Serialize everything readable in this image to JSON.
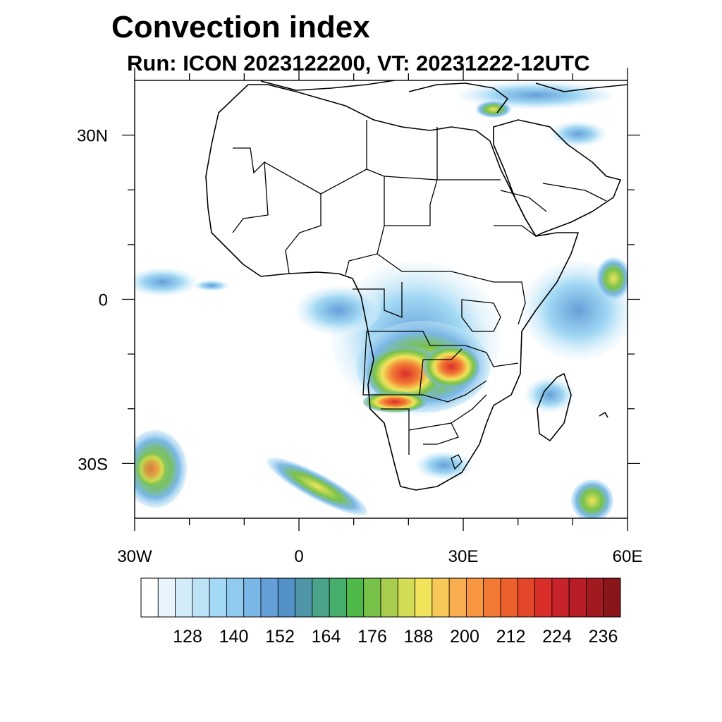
{
  "title": "Convection index",
  "subtitle": "Run: ICON 2023122200,  VT: 20231222-12UTC",
  "axes": {
    "lon_ticks": [
      {
        "value": -30,
        "label": "30W"
      },
      {
        "value": 0,
        "label": "0"
      },
      {
        "value": 30,
        "label": "30E"
      },
      {
        "value": 60,
        "label": "60E"
      }
    ],
    "lat_ticks": [
      {
        "value": 30,
        "label": "30N"
      },
      {
        "value": 0,
        "label": "0"
      },
      {
        "value": -30,
        "label": "30S"
      }
    ],
    "lon_range": [
      -30,
      60
    ],
    "lat_range": [
      -40,
      40
    ]
  },
  "colorbar": {
    "colors": [
      "#ffffff",
      "#e8f5fc",
      "#d2ecf9",
      "#bce3f6",
      "#a3d9f4",
      "#8ecbef",
      "#7ab7e6",
      "#659fd8",
      "#5290c8",
      "#4f95a8",
      "#4aa48a",
      "#46ae6c",
      "#4fb948",
      "#79c24a",
      "#a7cc4e",
      "#d2dc55",
      "#f1e45a",
      "#f7c958",
      "#f8ae4e",
      "#f79540",
      "#f27a34",
      "#ed602c",
      "#e34628",
      "#da2e2a",
      "#c8232b",
      "#b61d25",
      "#a01a1f",
      "#8a151b"
    ],
    "labels": [
      "128",
      "140",
      "152",
      "164",
      "176",
      "188",
      "200",
      "212",
      "224",
      "236"
    ]
  }
}
